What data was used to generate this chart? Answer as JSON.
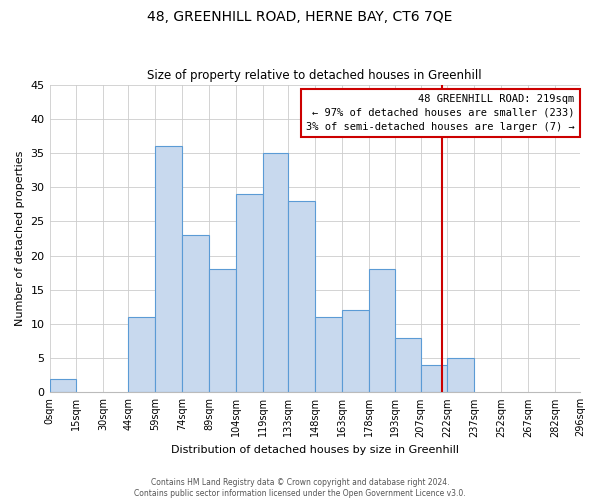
{
  "title": "48, GREENHILL ROAD, HERNE BAY, CT6 7QE",
  "subtitle": "Size of property relative to detached houses in Greenhill",
  "xlabel": "Distribution of detached houses by size in Greenhill",
  "ylabel": "Number of detached properties",
  "bin_edges": [
    0,
    15,
    30,
    44,
    59,
    74,
    89,
    104,
    119,
    133,
    148,
    163,
    178,
    193,
    207,
    222,
    237,
    252,
    267,
    282,
    296
  ],
  "bar_heights": [
    2,
    0,
    0,
    11,
    36,
    23,
    18,
    29,
    35,
    28,
    11,
    12,
    18,
    8,
    4,
    5,
    0,
    0,
    0,
    0
  ],
  "tick_labels": [
    "0sqm",
    "15sqm",
    "30sqm",
    "44sqm",
    "59sqm",
    "74sqm",
    "89sqm",
    "104sqm",
    "119sqm",
    "133sqm",
    "148sqm",
    "163sqm",
    "178sqm",
    "193sqm",
    "207sqm",
    "222sqm",
    "237sqm",
    "252sqm",
    "267sqm",
    "282sqm",
    "296sqm"
  ],
  "bar_color": "#c8d9ee",
  "bar_edge_color": "#5b9bd5",
  "vline_x": 219,
  "vline_color": "#cc0000",
  "annotation_title": "48 GREENHILL ROAD: 219sqm",
  "annotation_line1": "← 97% of detached houses are smaller (233)",
  "annotation_line2": "3% of semi-detached houses are larger (7) →",
  "annotation_box_color": "#cc0000",
  "ylim": [
    0,
    45
  ],
  "yticks": [
    0,
    5,
    10,
    15,
    20,
    25,
    30,
    35,
    40,
    45
  ],
  "grid_color": "#cccccc",
  "background_color": "#ffffff",
  "footer_line1": "Contains HM Land Registry data © Crown copyright and database right 2024.",
  "footer_line2": "Contains public sector information licensed under the Open Government Licence v3.0."
}
